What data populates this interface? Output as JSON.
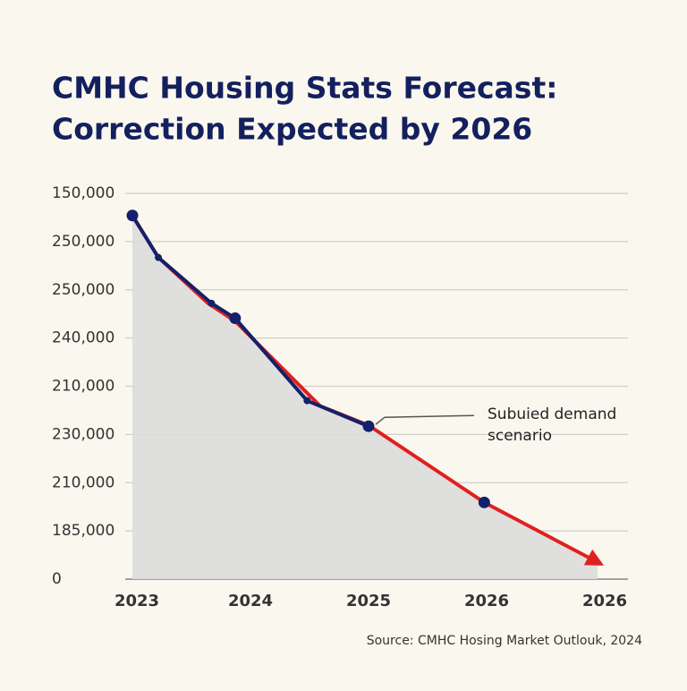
{
  "chart_data": {
    "type": "line",
    "title_lines": [
      "CMHC Housing Stats Forecast:",
      "Correction Expected by 2026"
    ],
    "xlim": [
      0,
      4
    ],
    "xticks": [
      {
        "value": 0,
        "label": "2023"
      },
      {
        "value": 1,
        "label": "2024"
      },
      {
        "value": 2,
        "label": "2025"
      },
      {
        "value": 3,
        "label": "2026"
      },
      {
        "value": 4,
        "label": "2026"
      }
    ],
    "ylim": [
      0,
      8
    ],
    "yticks": [
      {
        "value": 0,
        "label": "0"
      },
      {
        "value": 1,
        "label": "185,000"
      },
      {
        "value": 2,
        "label": "210,000"
      },
      {
        "value": 3,
        "label": "230,000"
      },
      {
        "value": 4,
        "label": "210,000"
      },
      {
        "value": 5,
        "label": "240,000"
      },
      {
        "value": 6,
        "label": "250,000"
      },
      {
        "value": 7,
        "label": "250,000"
      },
      {
        "value": 8,
        "label": "150,000"
      }
    ],
    "grid": true,
    "area_color": "#dcdcdc",
    "series": [
      {
        "color": "#e02020",
        "x": [
          0,
          0.22,
          0.64,
          0.87,
          1.59,
          2.0,
          2.98,
          3.94
        ],
        "values": [
          7.54,
          6.67,
          5.72,
          5.35,
          3.59,
          3.19,
          1.59,
          0.35
        ],
        "arrow": true,
        "fill": true
      },
      {
        "color": "#14206a",
        "x": [
          0,
          0.22,
          0.67,
          0.87,
          1.48,
          2.0
        ],
        "values": [
          7.54,
          6.67,
          5.72,
          5.41,
          3.7,
          3.17
        ],
        "markers": true
      },
      {
        "color": "#14206a",
        "x": [
          2.98
        ],
        "values": [
          1.59
        ],
        "markers": true
      }
    ],
    "annotation": {
      "lines": [
        "Subuied demand",
        "scenario"
      ],
      "x": 2.0,
      "y": 3.17
    },
    "source": "Source: CMHC Hosing Market Outlouk, 2024"
  }
}
